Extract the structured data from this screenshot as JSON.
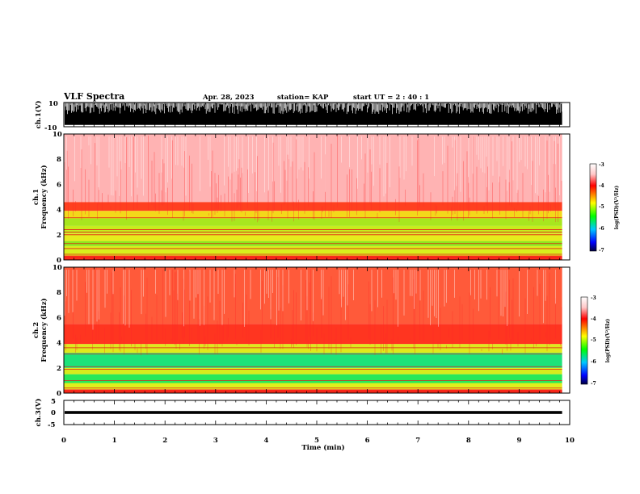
{
  "header": {
    "title": "VLF Spectra",
    "date": "Apr. 28, 2023",
    "station": "station= KAP",
    "start": "start  UT =   2 : 40 : 1"
  },
  "chart_data": [
    {
      "type": "line",
      "name": "ch1-waveform",
      "ylabel": "ch.1(V)",
      "ylim": [
        -10,
        10
      ],
      "yticks": [
        "10",
        "-10"
      ],
      "xlim": [
        0,
        10
      ],
      "x_data_end": 9.85,
      "fill_range": [
        -8.5,
        9.5
      ]
    },
    {
      "type": "heatmap",
      "name": "ch1-spectrogram",
      "ylabel_top": "ch.1",
      "ylabel": "Frequency (kHz)",
      "ylim": [
        0,
        10
      ],
      "yticks": [
        "0",
        "2",
        "4",
        "6",
        "8",
        "10"
      ],
      "xlim": [
        0,
        10
      ],
      "x_data_end": 9.85,
      "bands_khz": [
        {
          "from": 0,
          "to": 0.35,
          "color": "#ff2a1a"
        },
        {
          "from": 0.35,
          "to": 1.1,
          "color": "#d8ef1c"
        },
        {
          "from": 1.1,
          "to": 1.5,
          "color": "#8ee61e"
        },
        {
          "from": 1.5,
          "to": 2.1,
          "color": "#e6ec1c"
        },
        {
          "from": 2.1,
          "to": 2.7,
          "color": "#c8eb1d"
        },
        {
          "from": 2.7,
          "to": 3.3,
          "color": "#a8e61e"
        },
        {
          "from": 3.3,
          "to": 3.9,
          "color": "#f3d81a"
        },
        {
          "from": 3.9,
          "to": 4.6,
          "color": "#ff4020"
        },
        {
          "from": 4.6,
          "to": 10,
          "color": "#ffb3b3"
        }
      ],
      "lines_khz": [
        0.2,
        0.45,
        0.9,
        1.3,
        2.0,
        2.2,
        2.4,
        3.35
      ]
    },
    {
      "type": "heatmap",
      "name": "ch2-spectrogram",
      "ylabel_top": "ch.2",
      "ylabel": "Frequency (kHz)",
      "ylim": [
        0,
        10
      ],
      "yticks": [
        "0",
        "2",
        "4",
        "6",
        "8",
        "10"
      ],
      "xlim": [
        0,
        10
      ],
      "x_data_end": 9.85,
      "bands_khz": [
        {
          "from": 0,
          "to": 0.3,
          "color": "#ff2a1a"
        },
        {
          "from": 0.3,
          "to": 0.8,
          "color": "#e0ef1c"
        },
        {
          "from": 0.8,
          "to": 1.5,
          "color": "#27e85a"
        },
        {
          "from": 1.5,
          "to": 2.0,
          "color": "#d6ec1c"
        },
        {
          "from": 2.0,
          "to": 3.2,
          "color": "#1de37a"
        },
        {
          "from": 3.2,
          "to": 3.9,
          "color": "#dfe91c"
        },
        {
          "from": 3.9,
          "to": 5.5,
          "color": "#ff3520"
        },
        {
          "from": 5.5,
          "to": 10,
          "color": "#ff5a3a"
        }
      ],
      "lines_khz": [
        0.15,
        0.4,
        1.0,
        1.9,
        2.1,
        3.1,
        3.6
      ]
    },
    {
      "type": "line",
      "name": "ch3-waveform",
      "ylabel": "ch.3(V)",
      "ylim": [
        -5,
        5
      ],
      "yticks": [
        "5",
        "0",
        "-5"
      ],
      "xlim": [
        0,
        10
      ],
      "x_data_end": 9.85,
      "fill_range": [
        -0.6,
        0.6
      ],
      "xlabel": "Time (min)",
      "xticks": [
        "0",
        "1",
        "2",
        "3",
        "4",
        "5",
        "6",
        "7",
        "8",
        "9",
        "10"
      ]
    }
  ],
  "colorbars": [
    {
      "name": "ch1-colorbar",
      "label": "log(PSD)(V²/Hz)",
      "ticks": [
        "-3",
        "-4",
        "-5",
        "-6",
        "-7"
      ]
    },
    {
      "name": "ch2-colorbar",
      "label": "log(PSD)(V²/Hz)",
      "ticks": [
        "-3",
        "-4",
        "-5",
        "-6",
        "-7"
      ]
    }
  ],
  "colors": {
    "background_psd_high": "#ff2020",
    "background_psd_mid": "#ffff00",
    "background_psd_low": "#00ff40"
  }
}
